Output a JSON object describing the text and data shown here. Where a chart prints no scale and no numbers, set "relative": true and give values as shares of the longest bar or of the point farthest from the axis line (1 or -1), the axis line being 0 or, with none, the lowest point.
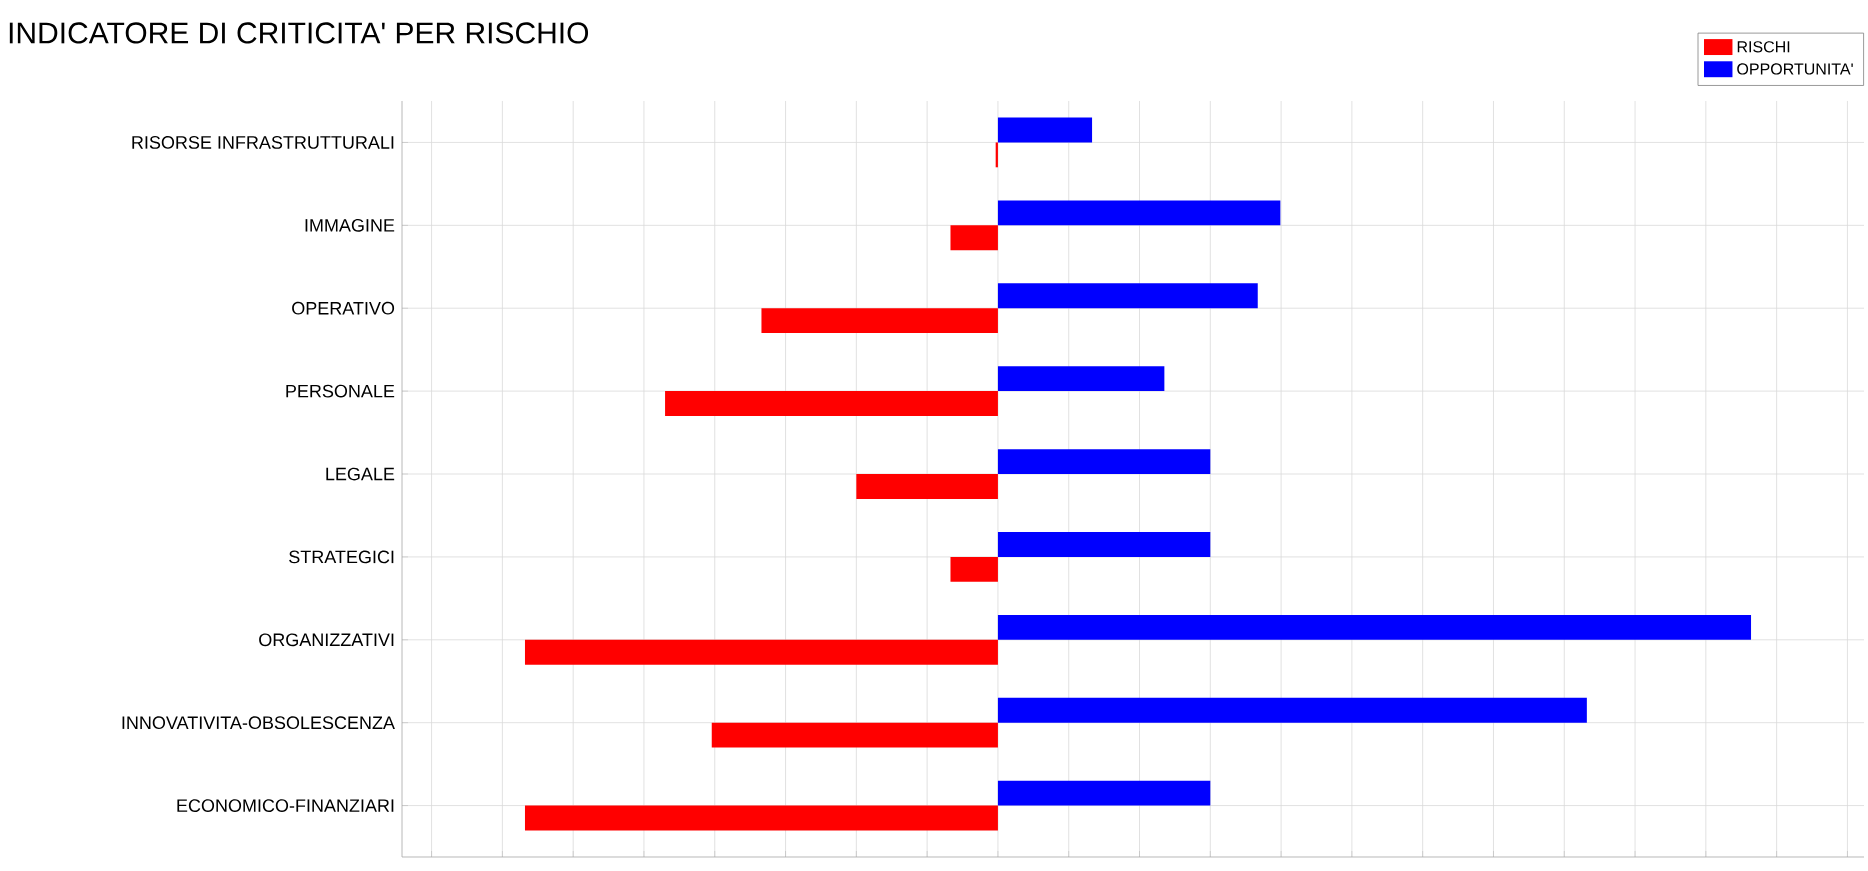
{
  "chart_data": {
    "type": "bar",
    "orientation": "horizontal",
    "relative": true,
    "title": "INDICATORE DI CRITICITA' PER RISCHIO",
    "categories": [
      "RISORSE  INFRASTRUTTURALI",
      "IMMAGINE",
      "OPERATIVO",
      "PERSONALE",
      "LEGALE",
      "STRATEGICI",
      "ORGANIZZATIVI",
      "INNOVATIVITA-OBSOLESCENZA",
      "ECONOMICO-FINANZIARI"
    ],
    "series": [
      {
        "name": "RISCHI",
        "color": "#ff0000",
        "values": [
          -0.003,
          -0.063,
          -0.314,
          -0.442,
          -0.188,
          -0.063,
          -0.628,
          -0.38,
          -0.628
        ]
      },
      {
        "name": "OPPORTUNITA'",
        "color": "#0000ff",
        "values": [
          0.125,
          0.375,
          0.345,
          0.221,
          0.282,
          0.282,
          1.0,
          0.782,
          0.282
        ]
      }
    ],
    "grid": true,
    "legend": "top right"
  }
}
